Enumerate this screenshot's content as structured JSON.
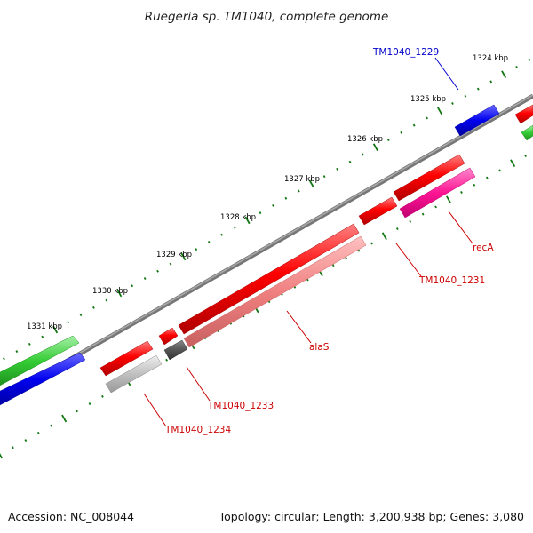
{
  "title": "Ruegeria sp. TM1040, complete genome",
  "footer": {
    "accession": "Accession: NC_008044",
    "summary": "Topology: circular; Length: 3,200,938 bp; Genes: 3,080"
  },
  "ruler": {
    "unit": "kbp",
    "labels": [
      "1324 kbp",
      "1325 kbp",
      "1326 kbp",
      "1327 kbp",
      "1328 kbp",
      "1329 kbp",
      "1330 kbp",
      "1331 kbp"
    ]
  },
  "genes": [
    {
      "name": "TM1040_1229",
      "color": "#0000cc"
    },
    {
      "name": "recA",
      "color": "#cc0000"
    },
    {
      "name": "TM1040_1231",
      "color": "#cc0000"
    },
    {
      "name": "alaS",
      "color": "#cc0000"
    },
    {
      "name": "TM1040_1233",
      "color": "#cc0000"
    },
    {
      "name": "TM1040_1234",
      "color": "#cc0000"
    }
  ],
  "colors": {
    "backbone": "#777777",
    "tick": "#117711",
    "feature_red": "#ff0000",
    "feature_pink": "#f08080",
    "feature_magenta": "#ff1493",
    "feature_gray": "#c0c0c0",
    "feature_darkgray": "#555555",
    "feature_blue": "#0000ee",
    "feature_green": "#33cc33"
  }
}
